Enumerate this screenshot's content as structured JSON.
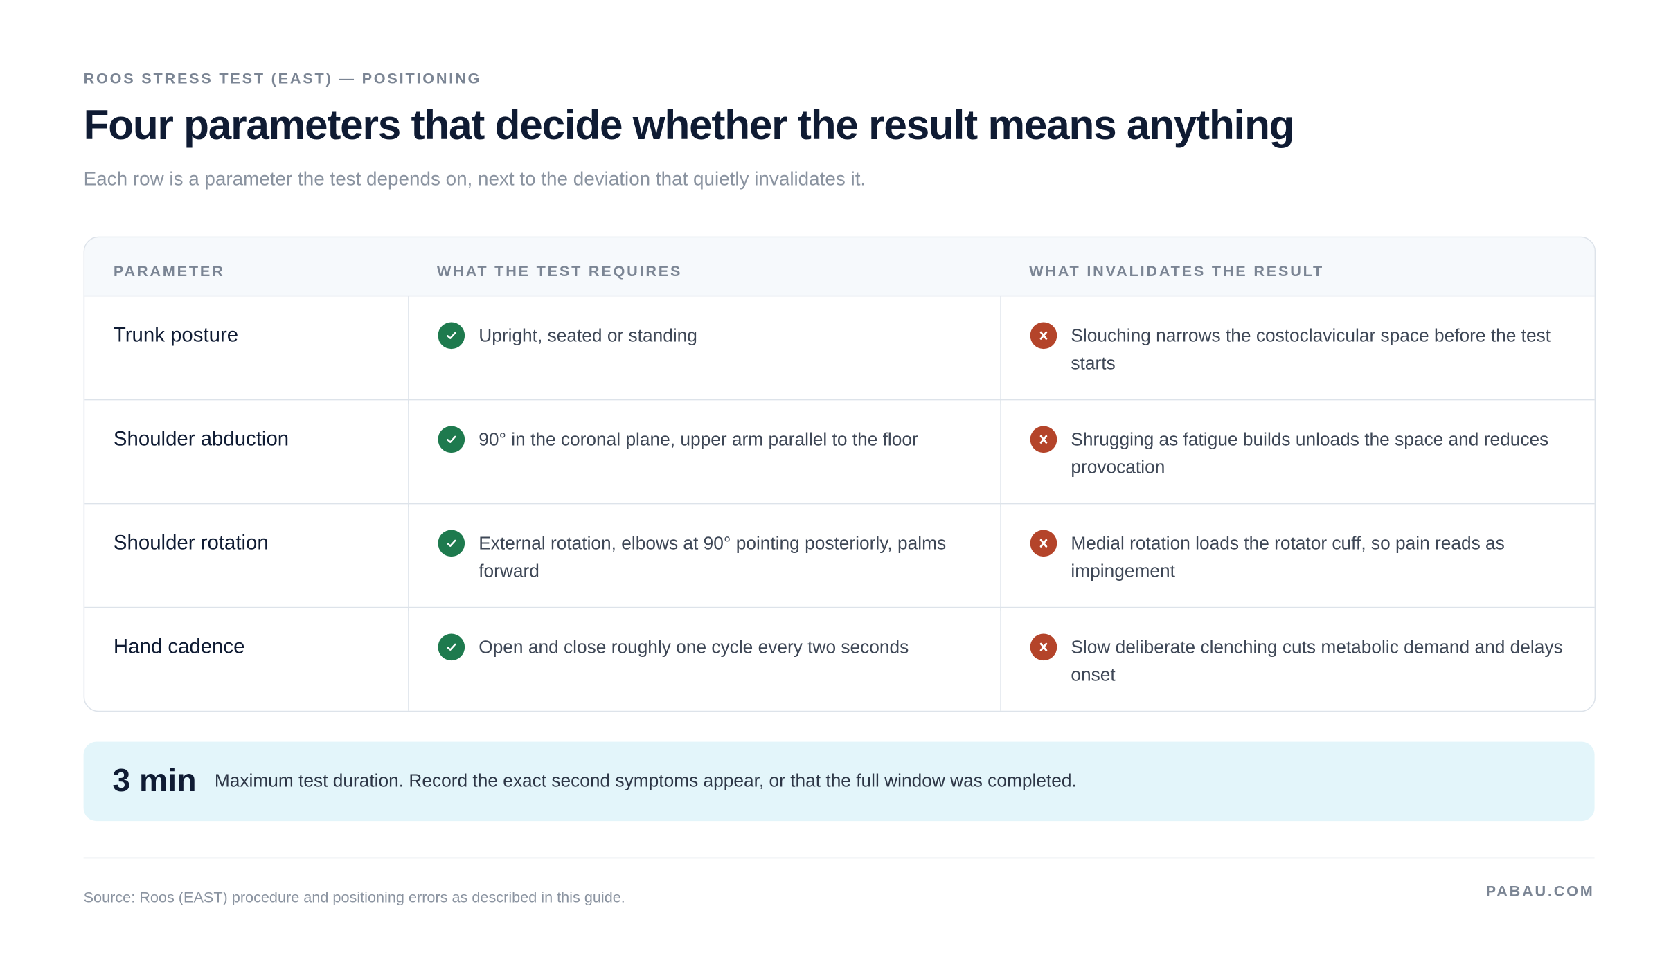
{
  "header": {
    "eyebrow": "ROOS STRESS TEST (EAST) — POSITIONING",
    "title": "Four parameters that decide whether the result means anything",
    "subtitle": "Each row is a parameter the test depends on, next to the deviation that quietly invalidates it."
  },
  "table": {
    "columns": [
      "PARAMETER",
      "WHAT THE TEST REQUIRES",
      "WHAT INVALIDATES THE RESULT"
    ],
    "rows": [
      [
        "Trunk posture",
        "Upright, seated or standing",
        "Slouching narrows the costoclavicular space before the test starts"
      ],
      [
        "Shoulder abduction",
        "90° in the coronal plane, upper arm parallel to the floor",
        "Shrugging as fatigue builds unloads the space and reduces provocation"
      ],
      [
        "Shoulder rotation",
        "External rotation, elbows at 90° pointing posteriorly, palms forward",
        "Medial rotation loads the rotator cuff, so pain reads as impingement"
      ],
      [
        "Hand cadence",
        "Open and close roughly one cycle every two seconds",
        "Slow deliberate clenching cuts metabolic demand and delays onset"
      ]
    ]
  },
  "callout": {
    "value": "3 min",
    "text": "Maximum test duration. Record the exact second symptoms appear, or that the full window was completed."
  },
  "footer": {
    "source": "Source: Roos (EAST) procedure and positioning errors as described in this guide.",
    "brand": "PABAU.COM"
  }
}
